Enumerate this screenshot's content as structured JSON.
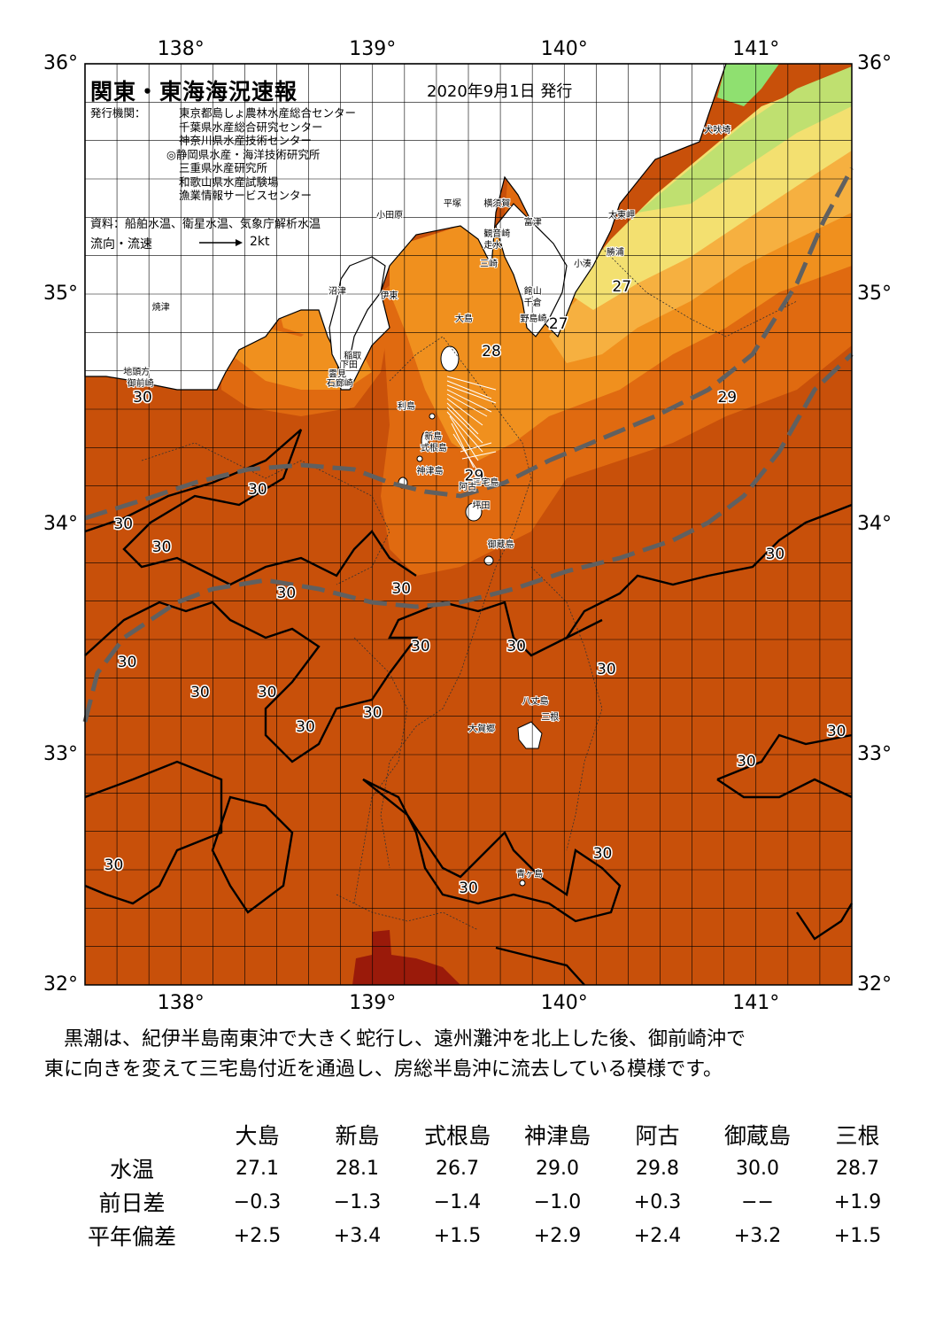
{
  "header": {
    "title": "関東・東海海況速報",
    "date": "2020年9月1日 発行",
    "publisher_label": "発行機関：",
    "publishers": [
      "東京都島しょ農林水産総合センター",
      "千葉県水産総合研究センター",
      "神奈川県水産技術センター",
      "◎静岡県水産・海洋技術研究所",
      "三重県水産研究所",
      "和歌山県水産試験場",
      "漁業情報サービスセンター"
    ],
    "sources": "資料：船舶水温、衛星水温、気象庁解析水温",
    "legend_label": "流向・流速",
    "legend_speed": "2kt"
  },
  "map": {
    "lon_range": [
      137.5,
      141.5
    ],
    "lat_range": [
      32,
      36
    ],
    "lon_ticks": [
      {
        "value": 138,
        "label": "138°"
      },
      {
        "value": 139,
        "label": "139°"
      },
      {
        "value": 140,
        "label": "140°"
      },
      {
        "value": 141,
        "label": "141°"
      }
    ],
    "lat_ticks": [
      {
        "value": 36,
        "label": "36°"
      },
      {
        "value": 35,
        "label": "35°"
      },
      {
        "value": 34,
        "label": "34°"
      },
      {
        "value": 33,
        "label": "33°"
      },
      {
        "value": 32,
        "label": "32°"
      }
    ],
    "colors": {
      "sst_30": "#c8500a",
      "sst_29": "#e06a10",
      "sst_28": "#f0901e",
      "sst_27": "#f6b040",
      "sst_26": "#f3e070",
      "sst_25": "#bfe070",
      "sst_24": "#8fe070",
      "sst_31": "#9a1a0a",
      "land": "#ffffff",
      "kuroshio_line": "#606060"
    },
    "temperature_labels": [
      {
        "lon": 137.8,
        "lat": 34.55,
        "text": "30"
      },
      {
        "lon": 138.4,
        "lat": 34.15,
        "text": "30"
      },
      {
        "lon": 137.7,
        "lat": 34.0,
        "text": "30"
      },
      {
        "lon": 137.9,
        "lat": 33.9,
        "text": "30"
      },
      {
        "lon": 138.55,
        "lat": 33.7,
        "text": "30"
      },
      {
        "lon": 139.15,
        "lat": 33.72,
        "text": "30"
      },
      {
        "lon": 139.25,
        "lat": 33.47,
        "text": "30"
      },
      {
        "lon": 139.75,
        "lat": 33.47,
        "text": "30"
      },
      {
        "lon": 137.72,
        "lat": 33.4,
        "text": "30"
      },
      {
        "lon": 138.1,
        "lat": 33.27,
        "text": "30"
      },
      {
        "lon": 138.45,
        "lat": 33.27,
        "text": "30"
      },
      {
        "lon": 138.65,
        "lat": 33.12,
        "text": "30"
      },
      {
        "lon": 139.0,
        "lat": 33.18,
        "text": "30"
      },
      {
        "lon": 140.22,
        "lat": 33.37,
        "text": "30"
      },
      {
        "lon": 141.1,
        "lat": 33.87,
        "text": "30"
      },
      {
        "lon": 141.42,
        "lat": 33.1,
        "text": "30"
      },
      {
        "lon": 140.95,
        "lat": 32.97,
        "text": "30"
      },
      {
        "lon": 137.65,
        "lat": 32.52,
        "text": "30"
      },
      {
        "lon": 140.2,
        "lat": 32.57,
        "text": "30"
      },
      {
        "lon": 139.5,
        "lat": 32.42,
        "text": "30"
      },
      {
        "lon": 139.53,
        "lat": 34.21,
        "text": "29"
      },
      {
        "lon": 140.85,
        "lat": 34.55,
        "text": "29"
      },
      {
        "lon": 139.62,
        "lat": 34.75,
        "text": "28"
      },
      {
        "lon": 140.3,
        "lat": 35.03,
        "text": "27"
      },
      {
        "lon": 139.97,
        "lat": 34.87,
        "text": "27"
      }
    ],
    "place_names": [
      {
        "lon": 140.73,
        "lat": 35.7,
        "text": "犬吠埼"
      },
      {
        "lon": 140.23,
        "lat": 35.33,
        "text": "太東岬"
      },
      {
        "lon": 140.22,
        "lat": 35.17,
        "text": "勝浦"
      },
      {
        "lon": 140.05,
        "lat": 35.12,
        "text": "小湊"
      },
      {
        "lon": 139.79,
        "lat": 35.3,
        "text": "富津"
      },
      {
        "lon": 139.58,
        "lat": 35.38,
        "text": "横須賀"
      },
      {
        "lon": 139.58,
        "lat": 35.25,
        "text": "観音崎"
      },
      {
        "lon": 139.58,
        "lat": 35.2,
        "text": "走水"
      },
      {
        "lon": 139.56,
        "lat": 35.12,
        "text": "三崎"
      },
      {
        "lon": 139.79,
        "lat": 35.0,
        "text": "館山"
      },
      {
        "lon": 139.79,
        "lat": 34.95,
        "text": "千倉"
      },
      {
        "lon": 139.77,
        "lat": 34.88,
        "text": "野島崎"
      },
      {
        "lon": 139.37,
        "lat": 35.38,
        "text": "平塚"
      },
      {
        "lon": 139.02,
        "lat": 35.33,
        "text": "小田原"
      },
      {
        "lon": 139.04,
        "lat": 34.98,
        "text": "伊東"
      },
      {
        "lon": 138.77,
        "lat": 35.0,
        "text": "沼津"
      },
      {
        "lon": 137.85,
        "lat": 34.93,
        "text": "焼津"
      },
      {
        "lon": 139.43,
        "lat": 34.88,
        "text": "大島"
      },
      {
        "lon": 138.85,
        "lat": 34.72,
        "text": "稲取"
      },
      {
        "lon": 138.83,
        "lat": 34.68,
        "text": "下田"
      },
      {
        "lon": 138.77,
        "lat": 34.64,
        "text": "雲見"
      },
      {
        "lon": 138.76,
        "lat": 34.6,
        "text": "石廊崎"
      },
      {
        "lon": 137.7,
        "lat": 34.65,
        "text": "地頭方"
      },
      {
        "lon": 137.72,
        "lat": 34.6,
        "text": "御前崎"
      },
      {
        "lon": 139.13,
        "lat": 34.5,
        "text": "利島"
      },
      {
        "lon": 139.27,
        "lat": 34.37,
        "text": "新島"
      },
      {
        "lon": 139.25,
        "lat": 34.32,
        "text": "式根島"
      },
      {
        "lon": 139.23,
        "lat": 34.22,
        "text": "神津島"
      },
      {
        "lon": 139.52,
        "lat": 34.17,
        "text": "三宅島"
      },
      {
        "lon": 139.45,
        "lat": 34.15,
        "text": "阿古"
      },
      {
        "lon": 139.52,
        "lat": 34.07,
        "text": "坪田"
      },
      {
        "lon": 139.6,
        "lat": 33.9,
        "text": "御蔵島"
      },
      {
        "lon": 139.78,
        "lat": 33.22,
        "text": "八丈島"
      },
      {
        "lon": 139.88,
        "lat": 33.15,
        "text": "三根"
      },
      {
        "lon": 139.5,
        "lat": 33.1,
        "text": "大賀郷"
      },
      {
        "lon": 139.75,
        "lat": 32.47,
        "text": "青ヶ島"
      }
    ]
  },
  "summary": [
    "黒潮は、紀伊半島南東沖で大きく蛇行し、遠州灘沖を北上した後、御前崎沖で",
    "東に向きを変えて三宅島付近を通過し、房総半島沖に流去している模様です。"
  ],
  "table": {
    "columns": [
      "大島",
      "新島",
      "式根島",
      "神津島",
      "阿古",
      "御蔵島",
      "三根"
    ],
    "rows": [
      {
        "label": "水温",
        "values": [
          "27.1",
          "28.1",
          "26.7",
          "29.0",
          "29.8",
          "30.0",
          "28.7"
        ]
      },
      {
        "label": "前日差",
        "values": [
          "−0.3",
          "−1.3",
          "−1.4",
          "−1.0",
          "+0.3",
          "−−",
          "+1.9"
        ]
      },
      {
        "label": "平年偏差",
        "values": [
          "+2.5",
          "+3.4",
          "+1.5",
          "+2.9",
          "+2.4",
          "+3.2",
          "+1.5"
        ]
      }
    ]
  }
}
